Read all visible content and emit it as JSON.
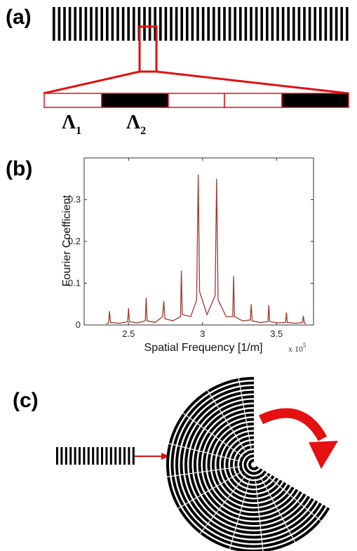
{
  "panels": {
    "a": {
      "label": "(a)",
      "lambda_1": {
        "symbol": "Λ",
        "subscript": "1"
      },
      "lambda_2": {
        "symbol": "Λ",
        "subscript": "2"
      }
    },
    "b": {
      "label": "(b)"
    },
    "c": {
      "label": "(c)"
    }
  },
  "chart_data": {
    "type": "line",
    "x_label": "Spatial Frequency [1/m]",
    "y_label": "Fourier Coefficient",
    "x_multiplier": "x 10",
    "x_exponent": "5",
    "xlim": [
      2.2,
      3.75
    ],
    "ylim": [
      0,
      0.4
    ],
    "xticks": [
      2.5,
      3,
      3.5
    ],
    "yticks": [
      0,
      0.1,
      0.2,
      0.3
    ],
    "x": [
      2.35,
      2.365,
      2.371,
      2.378,
      2.44,
      2.494,
      2.5,
      2.506,
      2.56,
      2.613,
      2.619,
      2.625,
      2.68,
      2.73,
      2.738,
      2.746,
      2.8,
      2.851,
      2.857,
      2.863,
      2.92,
      2.96,
      2.971,
      2.98,
      3.03,
      3.085,
      3.095,
      3.105,
      3.16,
      3.204,
      3.21,
      3.216,
      3.27,
      3.323,
      3.329,
      3.335,
      3.39,
      3.442,
      3.448,
      3.454,
      3.51,
      3.561,
      3.567,
      3.573,
      3.63,
      3.676,
      3.681,
      3.688,
      3.7
    ],
    "series": [
      {
        "color": "#a0382e",
        "values": [
          0.003,
          0.005,
          0.033,
          0.006,
          0.004,
          0.008,
          0.04,
          0.008,
          0.005,
          0.01,
          0.065,
          0.01,
          0.006,
          0.02,
          0.057,
          0.015,
          0.01,
          0.02,
          0.13,
          0.025,
          0.02,
          0.06,
          0.36,
          0.08,
          0.025,
          0.07,
          0.35,
          0.06,
          0.02,
          0.02,
          0.117,
          0.02,
          0.01,
          0.012,
          0.05,
          0.01,
          0.006,
          0.008,
          0.048,
          0.008,
          0.005,
          0.006,
          0.03,
          0.006,
          0.004,
          0.006,
          0.022,
          0.005,
          0.003
        ]
      }
    ]
  }
}
